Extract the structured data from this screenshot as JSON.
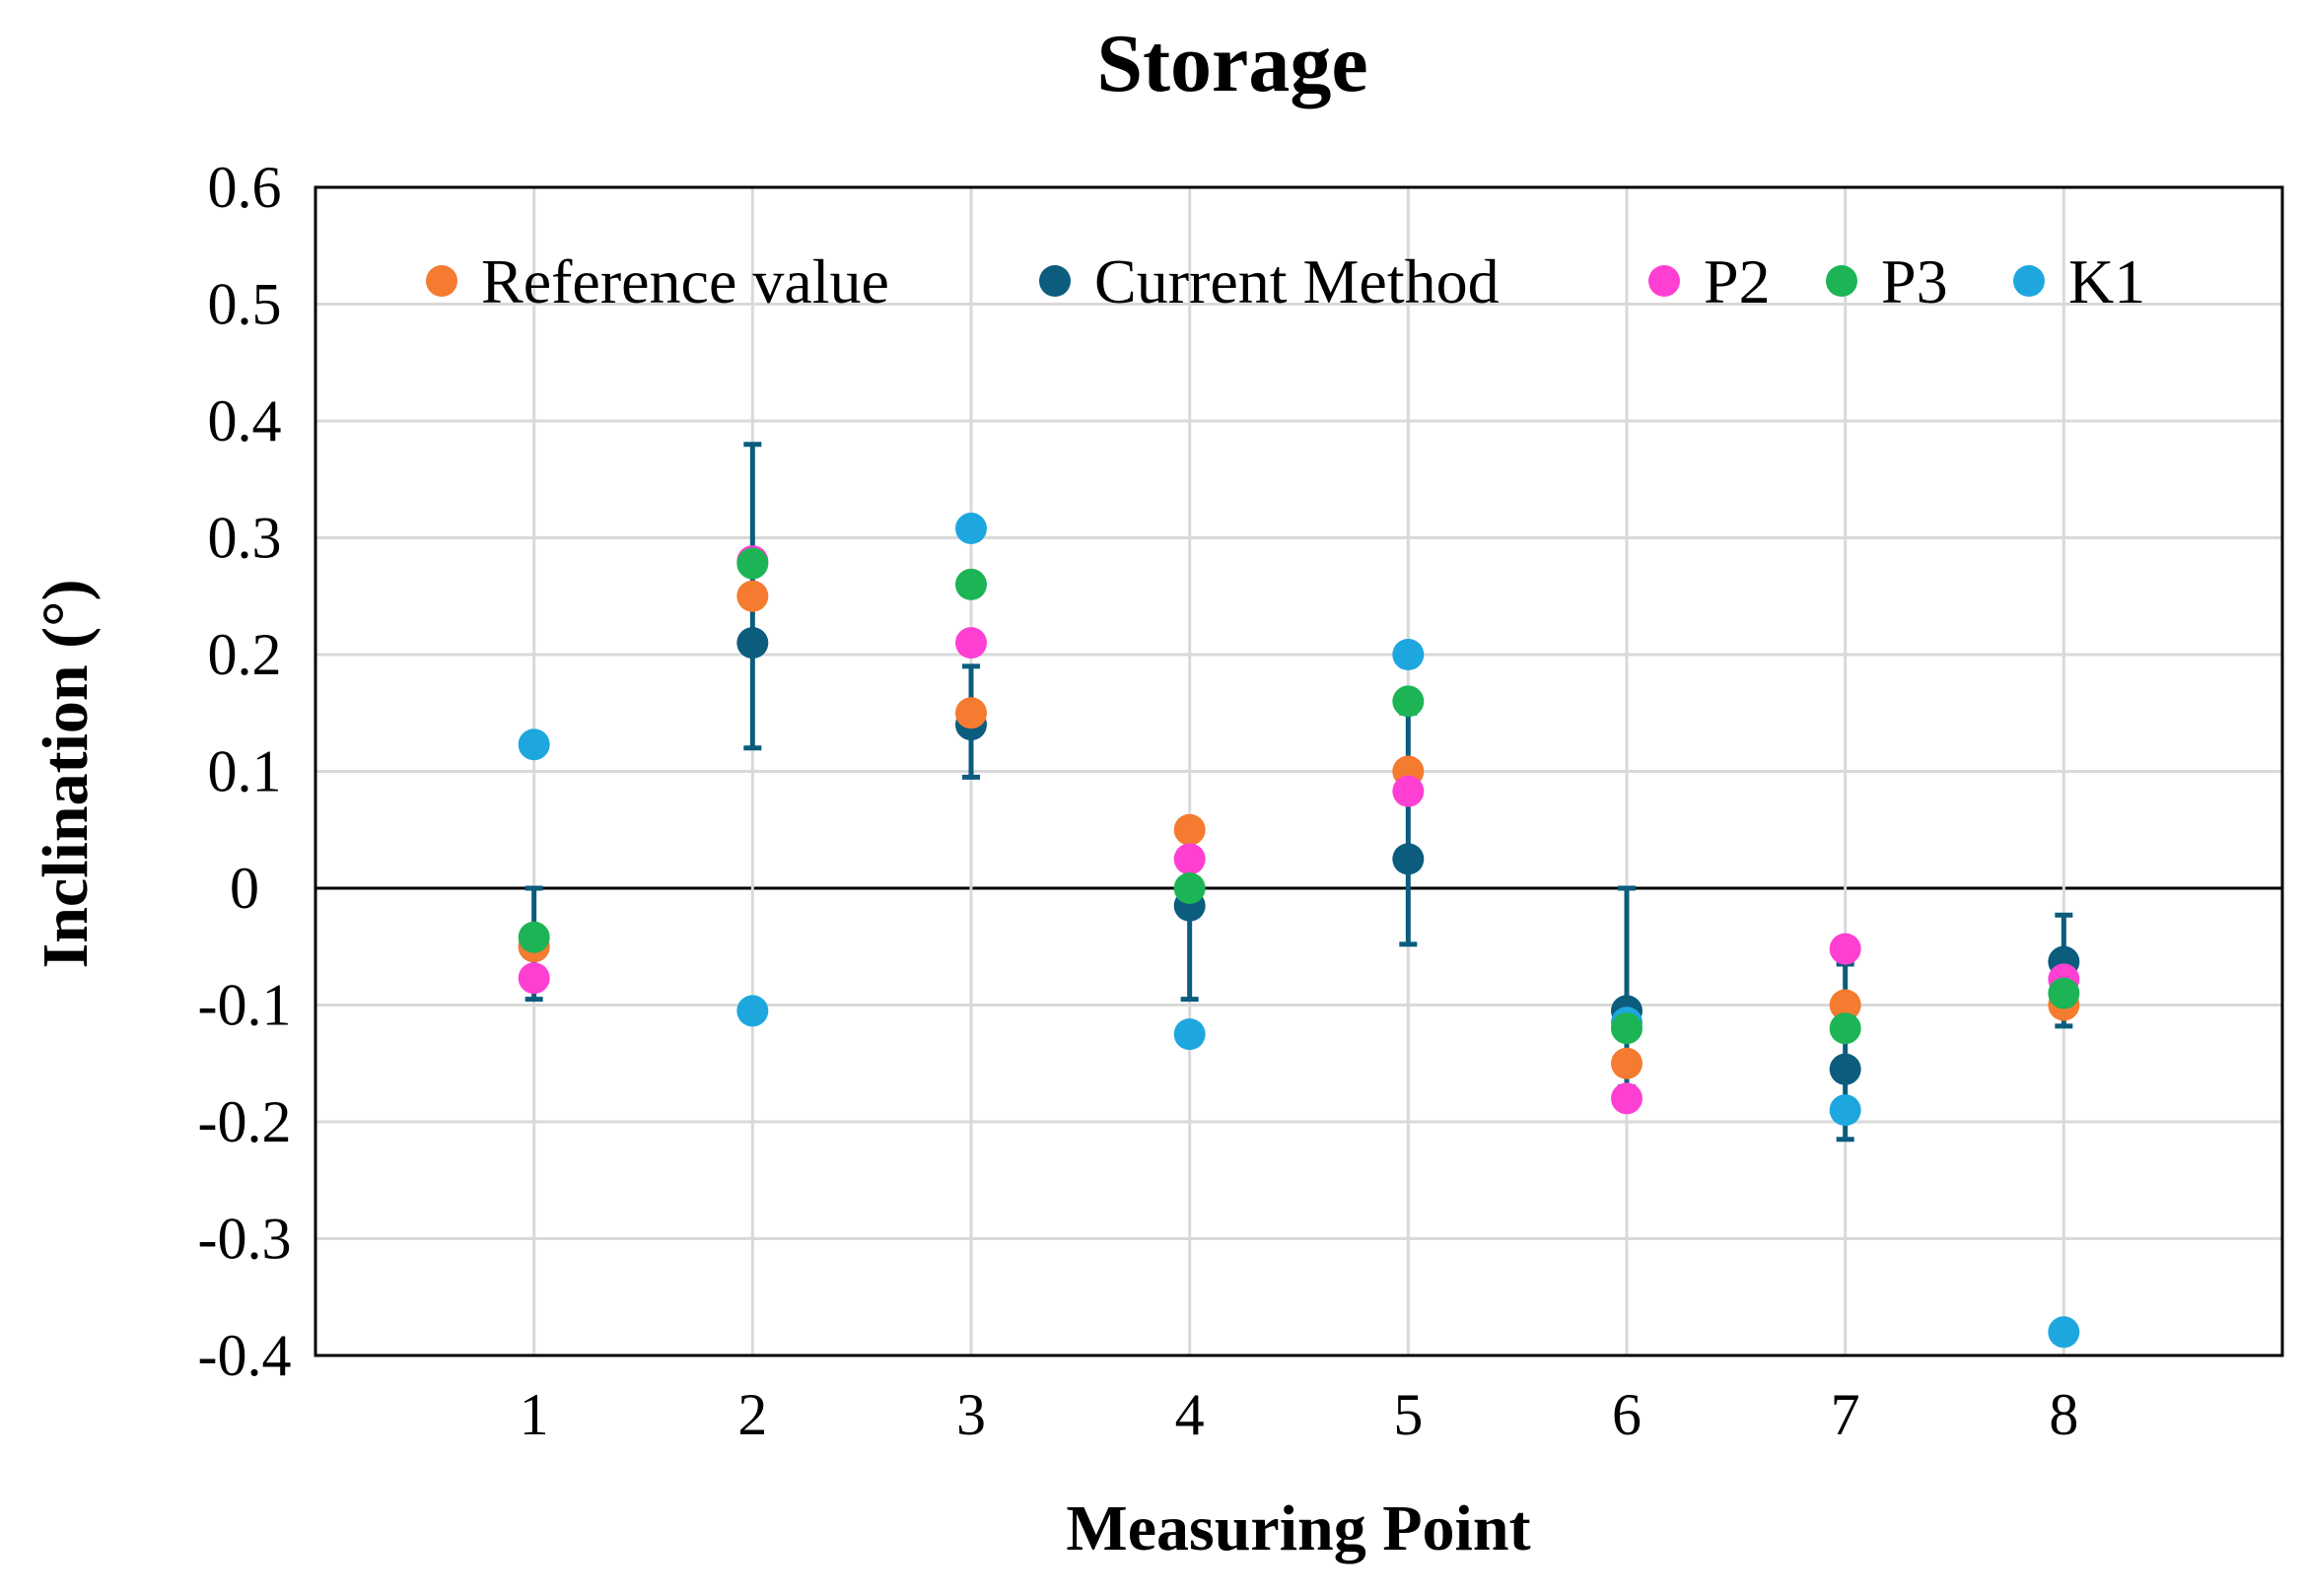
{
  "chart_data": {
    "type": "scatter",
    "title": "Storage",
    "xlabel": "Measuring Point",
    "ylabel": "Inclination (°)",
    "categories": [
      "1",
      "2",
      "3",
      "4",
      "5",
      "6",
      "7",
      "8"
    ],
    "xlim": [
      0,
      9
    ],
    "ylim": [
      -0.4,
      0.6
    ],
    "y_ticks": [
      "0.6",
      "0.5",
      "0.4",
      "0.3",
      "0.2",
      "0.1",
      "0",
      "-0.1",
      "-0.2",
      "-0.3",
      "-0.4"
    ],
    "grid": true,
    "legend_position": "top",
    "series": [
      {
        "name": "Reference value",
        "color": "#f47b30",
        "values": [
          -0.05,
          0.25,
          0.15,
          0.05,
          0.1,
          -0.15,
          -0.1,
          -0.1
        ]
      },
      {
        "name": "Current Method",
        "color": "#0b5c7d",
        "values": [
          -0.05,
          0.21,
          0.14,
          -0.015,
          0.025,
          -0.105,
          -0.155,
          -0.063
        ],
        "error_low": [
          -0.095,
          0.12,
          0.095,
          -0.095,
          -0.048,
          -0.17,
          -0.215,
          -0.118
        ],
        "error_high": [
          0.0,
          0.38,
          0.19,
          0.0,
          0.15,
          0.0,
          -0.065,
          -0.023
        ]
      },
      {
        "name": "P2",
        "color": "#ff3fd2",
        "values": [
          -0.077,
          0.28,
          0.21,
          0.025,
          0.083,
          -0.18,
          -0.052,
          -0.078
        ]
      },
      {
        "name": "P3",
        "color": "#1cb454",
        "values": [
          -0.042,
          0.278,
          0.26,
          0.0,
          0.16,
          -0.12,
          -0.12,
          -0.09
        ]
      },
      {
        "name": "K1",
        "color": "#1ea7df",
        "values": [
          0.123,
          -0.105,
          0.308,
          -0.125,
          0.2,
          -0.115,
          -0.19,
          -0.38
        ]
      }
    ]
  }
}
